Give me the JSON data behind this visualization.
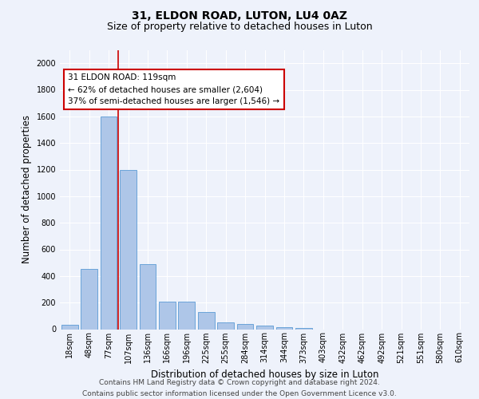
{
  "title": "31, ELDON ROAD, LUTON, LU4 0AZ",
  "subtitle": "Size of property relative to detached houses in Luton",
  "xlabel": "Distribution of detached houses by size in Luton",
  "ylabel": "Number of detached properties",
  "footer_line1": "Contains HM Land Registry data © Crown copyright and database right 2024.",
  "footer_line2": "Contains public sector information licensed under the Open Government Licence v3.0.",
  "categories": [
    "18sqm",
    "48sqm",
    "77sqm",
    "107sqm",
    "136sqm",
    "166sqm",
    "196sqm",
    "225sqm",
    "255sqm",
    "284sqm",
    "314sqm",
    "344sqm",
    "373sqm",
    "403sqm",
    "432sqm",
    "462sqm",
    "492sqm",
    "521sqm",
    "551sqm",
    "580sqm",
    "610sqm"
  ],
  "values": [
    35,
    455,
    1600,
    1200,
    490,
    210,
    210,
    130,
    50,
    40,
    25,
    15,
    10,
    0,
    0,
    0,
    0,
    0,
    0,
    0,
    0
  ],
  "bar_color": "#aec6e8",
  "bar_edge_color": "#5b9bd5",
  "annotation_text_line1": "31 ELDON ROAD: 119sqm",
  "annotation_text_line2": "← 62% of detached houses are smaller (2,604)",
  "annotation_text_line3": "37% of semi-detached houses are larger (1,546) →",
  "annotation_box_color": "#ffffff",
  "annotation_box_edge_color": "#cc0000",
  "vline_color": "#cc0000",
  "vline_x": 2.5,
  "ylim": [
    0,
    2100
  ],
  "background_color": "#eef2fb",
  "plot_background": "#eef2fb",
  "grid_color": "#ffffff",
  "title_fontsize": 10,
  "subtitle_fontsize": 9,
  "axis_label_fontsize": 8.5,
  "tick_fontsize": 7,
  "footer_fontsize": 6.5,
  "ann_fontsize": 7.5
}
